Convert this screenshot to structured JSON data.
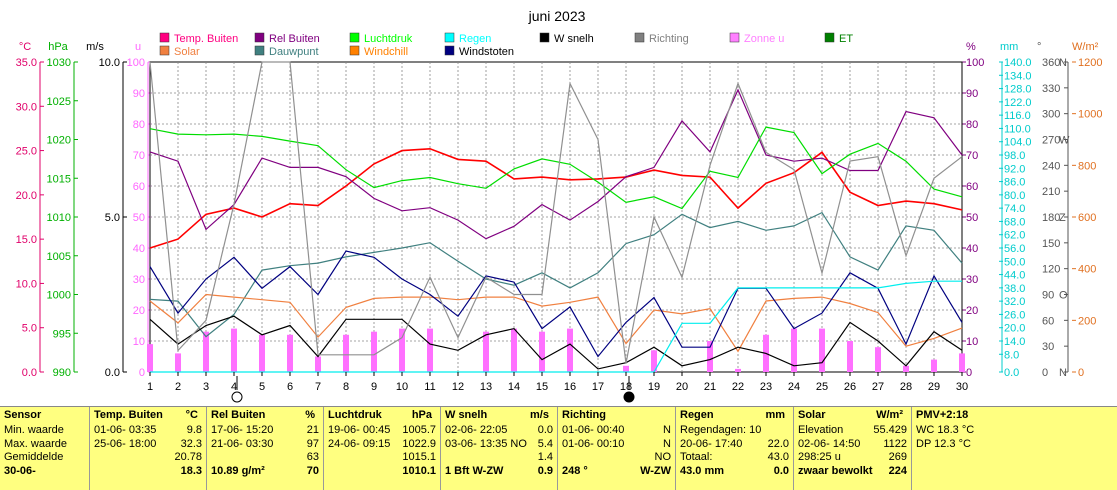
{
  "chart_data": {
    "type": "line",
    "title": "juni 2023",
    "x": [
      1,
      2,
      3,
      4,
      5,
      6,
      7,
      8,
      9,
      10,
      11,
      12,
      13,
      14,
      15,
      16,
      17,
      18,
      19,
      20,
      21,
      22,
      23,
      24,
      25,
      26,
      27,
      28,
      29,
      30
    ],
    "x_ticks": [
      "1",
      "2",
      "3",
      "4",
      "5",
      "6",
      "7",
      "8",
      "9",
      "10",
      "11",
      "12",
      "13",
      "14",
      "15",
      "16",
      "17",
      "18",
      "19",
      "20",
      "21",
      "22",
      "23",
      "24",
      "25",
      "26",
      "27",
      "28",
      "29",
      "30"
    ],
    "axes": {
      "temp": {
        "label": "°C",
        "range": [
          0,
          35
        ],
        "ticks": [
          "0.0",
          "5.0",
          "10.0",
          "15.0",
          "20.0",
          "25.0",
          "30.0",
          "35.0"
        ],
        "color": "#e0006a"
      },
      "pressure": {
        "label": "hPa",
        "range": [
          990,
          1030
        ],
        "ticks": [
          "990",
          "995",
          "1000",
          "1005",
          "1010",
          "1015",
          "1020",
          "1025",
          "1030"
        ],
        "color": "#00b000"
      },
      "wind": {
        "label": "m/s",
        "range": [
          0,
          10
        ],
        "ticks": [
          "0.0",
          "5.0",
          "10.0"
        ],
        "color": "#000000"
      },
      "uv": {
        "label": "u",
        "range": [
          0,
          100
        ],
        "ticks": [
          "0",
          "10",
          "20",
          "30",
          "40",
          "50",
          "60",
          "70",
          "80",
          "90",
          "100"
        ],
        "color": "#ff66ff"
      },
      "humidity": {
        "label": "%",
        "range": [
          0,
          100
        ],
        "ticks": [
          "0",
          "10",
          "20",
          "30",
          "40",
          "50",
          "60",
          "70",
          "80",
          "90",
          "100"
        ],
        "color": "#800080"
      },
      "rain": {
        "label": "mm",
        "range": [
          0,
          140
        ],
        "ticks": [
          "0.0",
          "8.0",
          "14.0",
          "20.0",
          "26.0",
          "32.0",
          "38.0",
          "44.0",
          "50.0",
          "56.0",
          "62.0",
          "68.0",
          "74.0",
          "80.0",
          "86.0",
          "92.0",
          "98.0",
          "104.0",
          "110.0",
          "116.0",
          "122.0",
          "128.0",
          "134.0",
          "140.0"
        ],
        "color": "#00cccc"
      },
      "direction": {
        "label": "°",
        "range": [
          0,
          360
        ],
        "ticks": [
          "0",
          "30",
          "60",
          "90",
          "120",
          "150",
          "180",
          "210",
          "240",
          "270",
          "300",
          "330",
          "360"
        ],
        "letters": [
          "N",
          "",
          "",
          "O",
          "",
          "",
          "Z",
          "",
          "",
          "W",
          "",
          "",
          "N"
        ],
        "color": "#555555"
      },
      "solar": {
        "label": "W/m²",
        "range": [
          0,
          1200
        ],
        "ticks": [
          "0",
          "200",
          "400",
          "600",
          "800",
          "1000",
          "1200"
        ],
        "color": "#e07020"
      }
    },
    "legend": [
      {
        "name": "Temp. Buiten",
        "color": "#ff0080"
      },
      {
        "name": "Solar",
        "color": "#f08040"
      },
      {
        "name": "Rel Buiten",
        "color": "#800080"
      },
      {
        "name": "Dauwpunt",
        "color": "#408080"
      },
      {
        "name": "Luchtdruk",
        "color": "#00ff00"
      },
      {
        "name": "Windchill",
        "color": "#ff8000"
      },
      {
        "name": "Regen",
        "color": "#00ffff"
      },
      {
        "name": "Windstoten",
        "color": "#000080"
      },
      {
        "name": "W snelh",
        "color": "#000000"
      },
      {
        "name": "Richting",
        "color": "#808080"
      },
      {
        "name": "Zonne u",
        "color": "#ff80ff"
      },
      {
        "name": "ET",
        "color": "#008000"
      }
    ],
    "series": [
      {
        "name": "Temp. Buiten",
        "axis": "temp",
        "color": "#ff0000",
        "values": [
          14,
          15,
          17.8,
          18.5,
          17.5,
          19,
          18.8,
          21,
          23.5,
          25,
          25.2,
          24,
          23.8,
          21.8,
          22,
          21.7,
          21.8,
          22,
          22.8,
          22.2,
          22,
          18.5,
          21.3,
          22.5,
          24.8,
          20.3,
          18.8,
          19.3,
          19,
          18.3
        ]
      },
      {
        "name": "Rel Buiten",
        "axis": "humidity",
        "color": "#800080",
        "values": [
          71,
          68,
          46,
          54,
          69,
          66,
          66,
          63,
          56,
          52,
          53,
          49,
          43,
          47,
          54,
          49,
          55,
          63,
          66,
          81,
          71,
          91,
          70,
          68,
          69,
          65,
          65,
          84,
          82,
          70
        ]
      },
      {
        "name": "Luchtdruk",
        "axis": "pressure",
        "color": "#00dd00",
        "values": [
          1021.4,
          1020.7,
          1020.6,
          1020.7,
          1020.4,
          1019.8,
          1019.2,
          1016.1,
          1013.8,
          1014.7,
          1015.1,
          1014.3,
          1013.7,
          1016.2,
          1017.5,
          1016.8,
          1014.5,
          1011.9,
          1012.6,
          1011.1,
          1015.9,
          1015.1,
          1021.6,
          1020.9,
          1015.6,
          1018.1,
          1019.5,
          1017.2,
          1013.6,
          1012.6
        ]
      },
      {
        "name": "Dauwpunt",
        "axis": "temp",
        "color": "#408080",
        "values": [
          8.2,
          8,
          4,
          6.5,
          11.5,
          12,
          12.3,
          13,
          13.5,
          14,
          14.6,
          12.5,
          10.5,
          9.8,
          11.2,
          9.5,
          11.2,
          14.5,
          15.5,
          17.8,
          16.3,
          17,
          16,
          16.5,
          18,
          13,
          11.5,
          16.5,
          16,
          12.3
        ]
      },
      {
        "name": "Solar",
        "axis": "solar",
        "color": "#f08040",
        "values": [
          275,
          190,
          300,
          290,
          280,
          270,
          135,
          250,
          285,
          290,
          290,
          280,
          290,
          290,
          255,
          270,
          290,
          110,
          240,
          225,
          245,
          80,
          275,
          285,
          290,
          265,
          230,
          100,
          130,
          170
        ]
      },
      {
        "name": "Windstoten",
        "axis": "wind",
        "color": "#000080",
        "values": [
          3.4,
          1.9,
          3.0,
          3.7,
          2.7,
          3.4,
          2.5,
          3.9,
          3.7,
          3.0,
          2.5,
          1.8,
          3.1,
          2.9,
          1.4,
          2.1,
          0.5,
          1.6,
          2.4,
          0.8,
          0.8,
          2.7,
          2.7,
          1.4,
          1.9,
          3.2,
          2.7,
          0.9,
          3.1,
          1.6
        ]
      },
      {
        "name": "W snelh",
        "axis": "wind",
        "color": "#000000",
        "values": [
          1.7,
          0.9,
          1.5,
          1.8,
          1.2,
          1.5,
          0.5,
          1.7,
          1.7,
          1.7,
          0.9,
          0.7,
          1.2,
          1.4,
          0.4,
          0.9,
          0.1,
          0.3,
          0.8,
          0.2,
          0.4,
          0.8,
          0.6,
          0.2,
          0.3,
          1.6,
          1.0,
          0.2,
          1.3,
          0.7
        ]
      },
      {
        "name": "Richting",
        "axis": "direction",
        "color": "#909090",
        "values": [
          360,
          25,
          60,
          195,
          360,
          360,
          20,
          20,
          20,
          40,
          110,
          40,
          110,
          90,
          90,
          335,
          270,
          10,
          180,
          110,
          240,
          335,
          255,
          235,
          115,
          245,
          250,
          135,
          225,
          250
        ]
      },
      {
        "name": "Regen",
        "axis": "rain",
        "color": "#00eeee",
        "values": [
          0,
          0,
          0,
          0,
          0,
          0,
          0,
          0,
          0,
          0,
          0,
          0,
          0,
          0,
          0,
          0,
          0,
          0,
          0,
          22,
          22,
          38,
          38,
          38,
          38,
          38,
          38,
          40,
          41,
          41
        ]
      },
      {
        "name": "Zonne u",
        "axis": "uv",
        "type": "bar",
        "color": "#ff70ff",
        "values": [
          9,
          6,
          13,
          14,
          12,
          12,
          5,
          12,
          13,
          14,
          14,
          0,
          13,
          14,
          13,
          14,
          0,
          2,
          7,
          0,
          10,
          1,
          12,
          14,
          14,
          10,
          8,
          2,
          4,
          6
        ]
      }
    ],
    "moon_markers": [
      {
        "day": 4,
        "phase": "open"
      },
      {
        "day": 18,
        "phase": "filled"
      }
    ],
    "grid": true
  },
  "panel": {
    "sensor": {
      "title": "Sensor",
      "rows": [
        "Min. waarde",
        "Max. waarde",
        "Gemiddelde",
        "30-06-"
      ]
    },
    "temp": {
      "title": "Temp. Buiten",
      "unit": "°C",
      "rows": [
        [
          "01-06- 03:35",
          "9.8"
        ],
        [
          "25-06- 18:00",
          "32.3"
        ],
        [
          "",
          "20.78"
        ],
        [
          "",
          "18.3"
        ]
      ]
    },
    "hum": {
      "title": "Rel Buiten",
      "unit": "%",
      "rows": [
        [
          "17-06- 15:20",
          "21"
        ],
        [
          "21-06- 03:30",
          "97"
        ],
        [
          "",
          "63"
        ],
        [
          "10.89 g/m²",
          "70"
        ]
      ]
    },
    "press": {
      "title": "Luchtdruk",
      "unit": "hPa",
      "rows": [
        [
          "19-06- 00:45",
          "1005.7"
        ],
        [
          "24-06- 09:15",
          "1022.9"
        ],
        [
          "",
          "1015.1"
        ],
        [
          "",
          "1010.1"
        ]
      ]
    },
    "wind": {
      "title": "W snelh",
      "unit": "m/s",
      "rows": [
        [
          "02-06- 22:05",
          "0.0"
        ],
        [
          "03-06- 13:35  NO",
          "5.4"
        ],
        [
          "",
          "1.4"
        ],
        [
          "1 Bft W-ZW",
          "0.9"
        ]
      ]
    },
    "dir": {
      "title": "Richting",
      "rows": [
        [
          "01-06- 00:40",
          "N"
        ],
        [
          "01-06- 00:10",
          "N"
        ],
        [
          "",
          "NO"
        ],
        [
          "248 °",
          "W-ZW"
        ]
      ]
    },
    "rain": {
      "title": "Regen",
      "unit": "mm",
      "rows": [
        [
          "Regendagen: 10",
          ""
        ],
        [
          "20-06- 17:40",
          "22.0"
        ],
        [
          "Totaal:",
          "43.0"
        ],
        [
          "43.0 mm",
          "0.0"
        ]
      ]
    },
    "solar": {
      "title": "Solar",
      "unit": "W/m²",
      "rows": [
        [
          "Elevation",
          "55.429"
        ],
        [
          "02-06- 14:50",
          "1122"
        ],
        [
          "298:25 u",
          "269"
        ],
        [
          "zwaar bewolkt",
          "224"
        ]
      ]
    },
    "pmv": {
      "title": "PMV+2:18",
      "rows": [
        "WC 18.3 °C",
        "DP 12.3 °C",
        "",
        ""
      ]
    }
  }
}
